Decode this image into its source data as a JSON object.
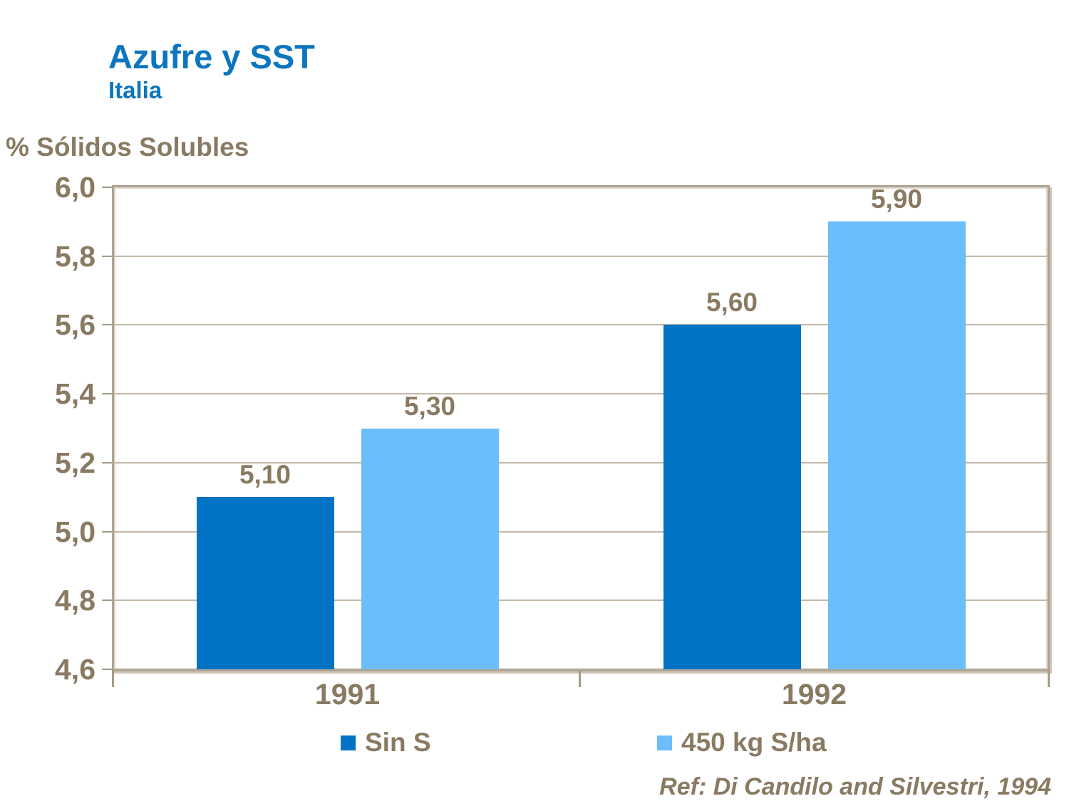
{
  "header": {
    "title": "Azufre y SST",
    "subtitle": "Italia"
  },
  "axis_title": "% Sólidos Solubles",
  "reference": "Ref: Di Candilo and Silvestri, 1994",
  "colors": {
    "title_blue": "#0C76BE",
    "series1_dark_blue": "#0273C4",
    "series2_light_blue": "#6CBEFB",
    "text_brown": "#8A7A62",
    "plot_border": "#AFA394",
    "gridline": "#C3B8A8"
  },
  "chart_data": {
    "type": "bar",
    "title": "Azufre y SST",
    "subtitle": "Italia",
    "ylabel": "% Sólidos Solubles",
    "categories": [
      "1991",
      "1992"
    ],
    "series": [
      {
        "name": "Sin S",
        "color": "#0273C4",
        "values": [
          5.1,
          5.6
        ],
        "labels": [
          "5,10",
          "5,60"
        ]
      },
      {
        "name": "450 kg S/ha",
        "color": "#6CBEFB",
        "values": [
          5.3,
          5.9
        ],
        "labels": [
          "5,30",
          "5,90"
        ]
      }
    ],
    "ylim": [
      4.6,
      6.0
    ],
    "ytick_step": 0.2,
    "ytick_labels": [
      "6,0",
      "5,8",
      "5,6",
      "5,4",
      "5,2",
      "5,0",
      "4,8",
      "4,6"
    ],
    "grid": true,
    "legend_position": "bottom",
    "value_label_decimal": "comma"
  },
  "legend": {
    "items": [
      {
        "label": "Sin S"
      },
      {
        "label": "450 kg S/ha"
      }
    ]
  }
}
